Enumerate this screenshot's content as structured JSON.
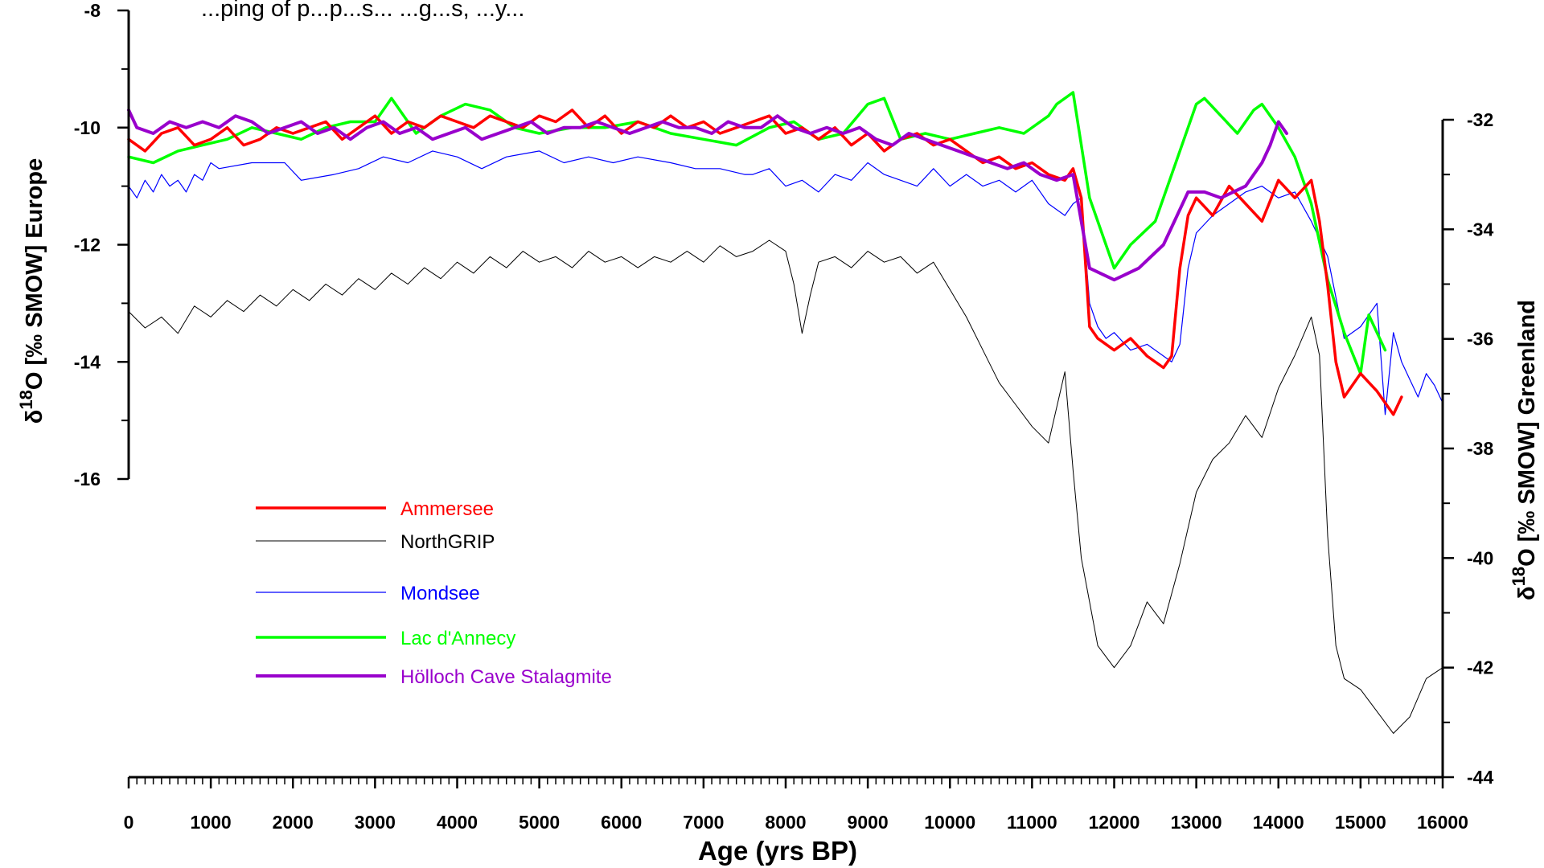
{
  "chart_data": {
    "type": "line",
    "title_fragment": "...ping of p...p...s... ...g...s, ...y...",
    "xlabel": "Age (yrs BP)",
    "xlim": [
      0,
      16000
    ],
    "xticks": [
      0,
      1000,
      2000,
      3000,
      4000,
      5000,
      6000,
      7000,
      8000,
      9000,
      10000,
      11000,
      12000,
      13000,
      14000,
      15000,
      16000
    ],
    "ylabel_left": "δ18O [‰ SMOW] Europe",
    "ylabel_left_parts": {
      "delta": "δ",
      "sup": "18",
      "rest": "O  [‰ SMOW] Europe"
    },
    "ylim_left": [
      -16,
      -8
    ],
    "yticks_left": [
      -8,
      -10,
      -12,
      -14,
      -16
    ],
    "ylabel_right": "δ18O [‰ SMOW] Greenland",
    "ylabel_right_parts": {
      "delta": "δ",
      "sup": "18",
      "rest": "O  [‰ SMOW] Greenland"
    },
    "ylim_right": [
      -44,
      -32
    ],
    "yticks_right": [
      -32,
      -34,
      -36,
      -38,
      -40,
      -42,
      -44
    ],
    "legend_position": "lower-left",
    "series": [
      {
        "name": "Ammersee",
        "color": "#ff0000",
        "width": 3.5,
        "axis": "left",
        "x": [
          0,
          200,
          400,
          600,
          800,
          1000,
          1200,
          1400,
          1600,
          1800,
          2000,
          2200,
          2400,
          2600,
          2800,
          3000,
          3200,
          3400,
          3600,
          3800,
          4000,
          4200,
          4400,
          4600,
          4800,
          5000,
          5200,
          5400,
          5600,
          5800,
          6000,
          6200,
          6400,
          6600,
          6800,
          7000,
          7200,
          7400,
          7600,
          7800,
          8000,
          8200,
          8400,
          8600,
          8800,
          9000,
          9200,
          9400,
          9600,
          9800,
          10000,
          10200,
          10400,
          10600,
          10800,
          11000,
          11200,
          11400,
          11500,
          11600,
          11700,
          11800,
          12000,
          12200,
          12400,
          12600,
          12700,
          12800,
          12900,
          13000,
          13200,
          13400,
          13600,
          13800,
          14000,
          14200,
          14400,
          14500,
          14600,
          14700,
          14800,
          15000,
          15200,
          15400,
          15500
        ],
        "y": [
          -10.2,
          -10.4,
          -10.1,
          -10.0,
          -10.3,
          -10.2,
          -10.0,
          -10.3,
          -10.2,
          -10.0,
          -10.1,
          -10.0,
          -9.9,
          -10.2,
          -10.0,
          -9.8,
          -10.1,
          -9.9,
          -10.0,
          -9.8,
          -9.9,
          -10.0,
          -9.8,
          -9.9,
          -10.0,
          -9.8,
          -9.9,
          -9.7,
          -10.0,
          -9.8,
          -10.1,
          -9.9,
          -10.0,
          -9.8,
          -10.0,
          -9.9,
          -10.1,
          -10.0,
          -9.9,
          -9.8,
          -10.1,
          -10.0,
          -10.2,
          -10.0,
          -10.3,
          -10.1,
          -10.4,
          -10.2,
          -10.1,
          -10.3,
          -10.2,
          -10.4,
          -10.6,
          -10.5,
          -10.7,
          -10.6,
          -10.8,
          -10.9,
          -10.7,
          -11.2,
          -13.4,
          -13.6,
          -13.8,
          -13.6,
          -13.9,
          -14.1,
          -13.9,
          -12.4,
          -11.5,
          -11.2,
          -11.5,
          -11.0,
          -11.3,
          -11.6,
          -10.9,
          -11.2,
          -10.9,
          -11.6,
          -12.7,
          -14.0,
          -14.6,
          -14.2,
          -14.5,
          -14.9,
          -14.6
        ]
      },
      {
        "name": "NorthGRIP",
        "color": "#000000",
        "width": 1,
        "axis": "right",
        "x": [
          0,
          200,
          400,
          600,
          800,
          1000,
          1200,
          1400,
          1600,
          1800,
          2000,
          2200,
          2400,
          2600,
          2800,
          3000,
          3200,
          3400,
          3600,
          3800,
          4000,
          4200,
          4400,
          4600,
          4800,
          5000,
          5200,
          5400,
          5600,
          5800,
          6000,
          6200,
          6400,
          6600,
          6800,
          7000,
          7200,
          7400,
          7600,
          7800,
          8000,
          8100,
          8200,
          8300,
          8400,
          8600,
          8800,
          9000,
          9200,
          9400,
          9600,
          9800,
          10000,
          10200,
          10400,
          10600,
          10800,
          11000,
          11200,
          11400,
          11500,
          11600,
          11700,
          11800,
          12000,
          12200,
          12400,
          12600,
          12800,
          13000,
          13200,
          13400,
          13600,
          13800,
          14000,
          14200,
          14400,
          14500,
          14600,
          14700,
          14800,
          15000,
          15200,
          15400,
          15600,
          15800,
          16000
        ],
        "y": [
          -35.5,
          -35.8,
          -35.6,
          -35.9,
          -35.4,
          -35.6,
          -35.3,
          -35.5,
          -35.2,
          -35.4,
          -35.1,
          -35.3,
          -35.0,
          -35.2,
          -34.9,
          -35.1,
          -34.8,
          -35.0,
          -34.7,
          -34.9,
          -34.6,
          -34.8,
          -34.5,
          -34.7,
          -34.4,
          -34.6,
          -34.5,
          -34.7,
          -34.4,
          -34.6,
          -34.5,
          -34.7,
          -34.5,
          -34.6,
          -34.4,
          -34.6,
          -34.3,
          -34.5,
          -34.4,
          -34.2,
          -34.4,
          -35.0,
          -35.9,
          -35.2,
          -34.6,
          -34.5,
          -34.7,
          -34.4,
          -34.6,
          -34.5,
          -34.8,
          -34.6,
          -35.1,
          -35.6,
          -36.2,
          -36.8,
          -37.2,
          -37.6,
          -37.9,
          -36.6,
          -38.4,
          -40.0,
          -40.8,
          -41.6,
          -42.0,
          -41.6,
          -40.8,
          -41.2,
          -40.1,
          -38.8,
          -38.2,
          -37.9,
          -37.4,
          -37.8,
          -36.9,
          -36.3,
          -35.6,
          -36.3,
          -39.6,
          -41.6,
          -42.2,
          -42.4,
          -42.8,
          -43.2,
          -42.9,
          -42.2,
          -42.0
        ]
      },
      {
        "name": "Mondsee",
        "color": "#0000ff",
        "width": 1.2,
        "axis": "left",
        "x": [
          0,
          100,
          200,
          300,
          400,
          500,
          600,
          700,
          800,
          900,
          1000,
          1100,
          1500,
          1900,
          2100,
          2500,
          2800,
          3100,
          3400,
          3700,
          4000,
          4300,
          4600,
          5000,
          5300,
          5600,
          5900,
          6200,
          6600,
          6900,
          7200,
          7500,
          7600,
          7800,
          8000,
          8200,
          8400,
          8600,
          8800,
          9000,
          9200,
          9400,
          9600,
          9800,
          10000,
          10200,
          10400,
          10600,
          10800,
          11000,
          11200,
          11400,
          11500,
          11600,
          11700,
          11800,
          11900,
          12000,
          12200,
          12400,
          12600,
          12700,
          12800,
          12900,
          13000,
          13200,
          13400,
          13600,
          13800,
          14000,
          14200,
          14400,
          14600,
          14800,
          14900,
          15000,
          15100,
          15200,
          15300,
          15400,
          15500,
          15600,
          15700,
          15800,
          15900,
          16000
        ],
        "y": [
          -11.0,
          -11.2,
          -10.9,
          -11.1,
          -10.8,
          -11.0,
          -10.9,
          -11.1,
          -10.8,
          -10.9,
          -10.6,
          -10.7,
          -10.6,
          -10.6,
          -10.9,
          -10.8,
          -10.7,
          -10.5,
          -10.6,
          -10.4,
          -10.5,
          -10.7,
          -10.5,
          -10.4,
          -10.6,
          -10.5,
          -10.6,
          -10.5,
          -10.6,
          -10.7,
          -10.7,
          -10.8,
          -10.8,
          -10.7,
          -11.0,
          -10.9,
          -11.1,
          -10.8,
          -10.9,
          -10.6,
          -10.8,
          -10.9,
          -11.0,
          -10.7,
          -11.0,
          -10.8,
          -11.0,
          -10.9,
          -11.1,
          -10.9,
          -11.3,
          -11.5,
          -11.3,
          -11.2,
          -13.0,
          -13.4,
          -13.6,
          -13.5,
          -13.8,
          -13.7,
          -13.9,
          -14.0,
          -13.7,
          -12.4,
          -11.8,
          -11.5,
          -11.3,
          -11.1,
          -11.0,
          -11.2,
          -11.1,
          -11.6,
          -12.2,
          -13.6,
          -13.5,
          -13.4,
          -13.2,
          -13.0,
          -14.9,
          -13.5,
          -14.0,
          -14.3,
          -14.6,
          -14.2,
          -14.4,
          -14.7
        ]
      },
      {
        "name": "Lac d'Annecy",
        "color": "#00ff00",
        "width": 3.5,
        "axis": "left",
        "x": [
          0,
          300,
          600,
          900,
          1200,
          1500,
          1800,
          2100,
          2400,
          2700,
          3000,
          3200,
          3500,
          3800,
          4100,
          4400,
          4700,
          5000,
          5400,
          5800,
          6200,
          6600,
          7000,
          7400,
          7800,
          8100,
          8400,
          8700,
          9000,
          9200,
          9400,
          9700,
          10000,
          10300,
          10600,
          10900,
          11200,
          11300,
          11500,
          11700,
          12000,
          12200,
          12500,
          12800,
          13000,
          13100,
          13300,
          13500,
          13700,
          13800,
          14000,
          14200,
          14400,
          14600,
          14800,
          15000,
          15100,
          15300
        ],
        "y": [
          -10.5,
          -10.6,
          -10.4,
          -10.3,
          -10.2,
          -10.0,
          -10.1,
          -10.2,
          -10.0,
          -9.9,
          -9.9,
          -9.5,
          -10.1,
          -9.8,
          -9.6,
          -9.7,
          -10.0,
          -10.1,
          -10.0,
          -10.0,
          -9.9,
          -10.1,
          -10.2,
          -10.3,
          -10.0,
          -9.9,
          -10.2,
          -10.1,
          -9.6,
          -9.5,
          -10.2,
          -10.1,
          -10.2,
          -10.1,
          -10.0,
          -10.1,
          -9.8,
          -9.6,
          -9.4,
          -11.2,
          -12.4,
          -12.0,
          -11.6,
          -10.4,
          -9.6,
          -9.5,
          -9.8,
          -10.1,
          -9.7,
          -9.6,
          -10.0,
          -10.5,
          -11.3,
          -12.6,
          -13.5,
          -14.2,
          -13.2,
          -13.8
        ]
      },
      {
        "name": "Hölloch Cave Stalagmite",
        "color": "#9900cc",
        "width": 4,
        "axis": "left",
        "x": [
          0,
          100,
          300,
          500,
          700,
          900,
          1100,
          1300,
          1500,
          1700,
          1900,
          2100,
          2300,
          2500,
          2700,
          2900,
          3100,
          3300,
          3500,
          3700,
          3900,
          4100,
          4300,
          4500,
          4700,
          4900,
          5100,
          5300,
          5500,
          5700,
          5900,
          6100,
          6300,
          6500,
          6700,
          6900,
          7100,
          7300,
          7500,
          7700,
          7900,
          8100,
          8300,
          8500,
          8700,
          8900,
          9100,
          9300,
          9500,
          9700,
          9900,
          10100,
          10300,
          10500,
          10700,
          10900,
          11100,
          11300,
          11500,
          11700,
          12000,
          12300,
          12600,
          12900,
          13100,
          13300,
          13600,
          13800,
          13900,
          14000,
          14100
        ],
        "y": [
          -9.7,
          -10.0,
          -10.1,
          -9.9,
          -10.0,
          -9.9,
          -10.0,
          -9.8,
          -9.9,
          -10.1,
          -10.0,
          -9.9,
          -10.1,
          -10.0,
          -10.2,
          -10.0,
          -9.9,
          -10.1,
          -10.0,
          -10.2,
          -10.1,
          -10.0,
          -10.2,
          -10.1,
          -10.0,
          -9.9,
          -10.1,
          -10.0,
          -10.0,
          -9.9,
          -10.0,
          -10.1,
          -10.0,
          -9.9,
          -10.0,
          -10.0,
          -10.1,
          -9.9,
          -10.0,
          -10.0,
          -9.8,
          -10.0,
          -10.1,
          -10.0,
          -10.1,
          -10.0,
          -10.2,
          -10.3,
          -10.1,
          -10.2,
          -10.3,
          -10.4,
          -10.5,
          -10.6,
          -10.7,
          -10.6,
          -10.8,
          -10.9,
          -10.8,
          -12.4,
          -12.6,
          -12.4,
          -12.0,
          -11.1,
          -11.1,
          -11.2,
          -11.0,
          -10.6,
          -10.3,
          -9.9,
          -10.1
        ]
      }
    ]
  }
}
